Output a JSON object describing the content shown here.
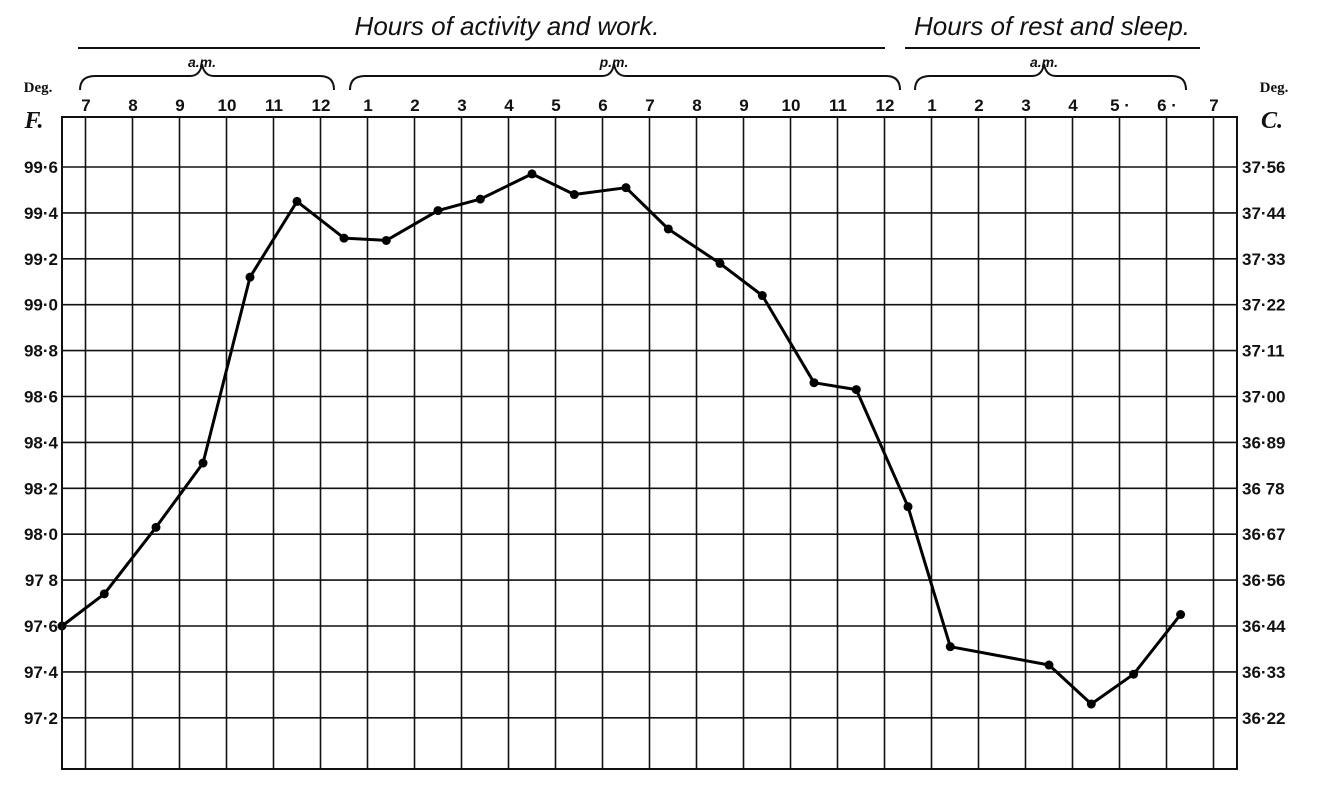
{
  "chart_data": {
    "type": "line",
    "headers": {
      "activity": "Hours of activity and work.",
      "rest": "Hours of rest and sleep."
    },
    "period_labels": {
      "am_morning": "a.m.",
      "pm": "p.m.",
      "am_night": "a.m."
    },
    "hour_labels": [
      "7",
      "8",
      "9",
      "10",
      "11",
      "12",
      "1",
      "2",
      "3",
      "4",
      "5",
      "6",
      "7",
      "8",
      "9",
      "10",
      "11",
      "12",
      "1",
      "2",
      "3",
      "4",
      "5 ·",
      "6 ·",
      "7"
    ],
    "left_axis": {
      "deg_label": "Deg.",
      "unit_label": "F."
    },
    "right_axis": {
      "deg_label": "Deg.",
      "unit_label": "C."
    },
    "y_ticks_f": [
      "99·6",
      "99·4",
      "99·2",
      "99·0",
      "98·8",
      "98·6",
      "98·4",
      "98·2",
      "98·0",
      "97 8",
      "97·6",
      "97·4",
      "97·2"
    ],
    "y_ticks_c": [
      "37·56",
      "37·44",
      "37·33",
      "37·22",
      "37·11",
      "37·00",
      "36·89",
      "36 78",
      "36·67",
      "36·56",
      "36·44",
      "36·33",
      "36·22"
    ],
    "ylim": [
      97.0,
      99.8
    ],
    "series": [
      {
        "x": [
          0,
          0.9,
          2.0,
          3.0,
          4.0,
          5.0,
          6.0,
          6.9,
          8.0,
          8.9,
          10.0,
          10.9,
          12.0,
          12.9,
          14.0,
          14.9,
          16.0,
          16.9,
          18.0,
          18.9,
          21.0,
          21.9,
          22.8,
          23.8
        ],
        "values": [
          97.6,
          97.74,
          98.03,
          98.31,
          99.12,
          99.45,
          99.29,
          99.28,
          99.41,
          99.46,
          99.57,
          99.48,
          99.51,
          99.33,
          99.18,
          99.04,
          98.66,
          98.63,
          98.12,
          97.51,
          97.43,
          97.26,
          97.39,
          97.65
        ]
      }
    ],
    "grid": true
  }
}
